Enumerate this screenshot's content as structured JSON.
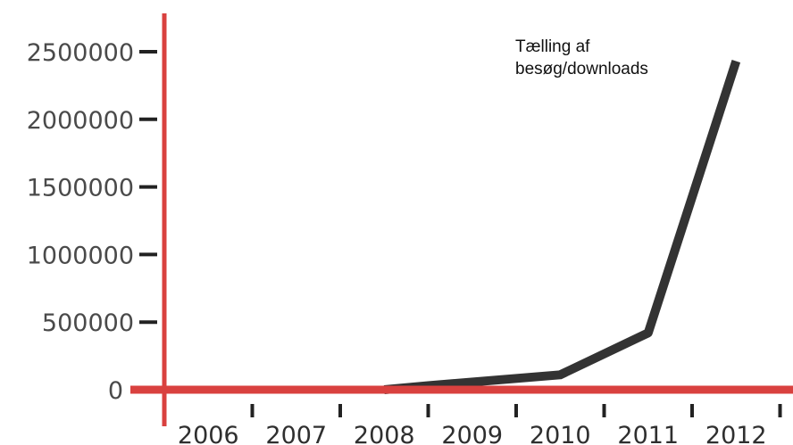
{
  "chart_data": {
    "type": "line",
    "title": "",
    "xlabel": "",
    "ylabel": "",
    "categories": [
      "2006",
      "2007",
      "2008",
      "2009",
      "2010",
      "2011",
      "2012"
    ],
    "y_ticks": [
      "0",
      "500000",
      "1000000",
      "1500000",
      "2000000",
      "2500000"
    ],
    "ylim": [
      0,
      2500000
    ],
    "grid": false,
    "annotation": [
      "Tælling af",
      "besøg/downloads"
    ],
    "series": [
      {
        "x": [
          2008.5,
          2009,
          2010.5,
          2011.5,
          2012.5
        ],
        "y": [
          0,
          30000,
          110000,
          420000,
          2430000
        ]
      }
    ],
    "colors": {
      "axes": "#d9413f",
      "line": "#333333",
      "ticks": "#222222"
    }
  }
}
